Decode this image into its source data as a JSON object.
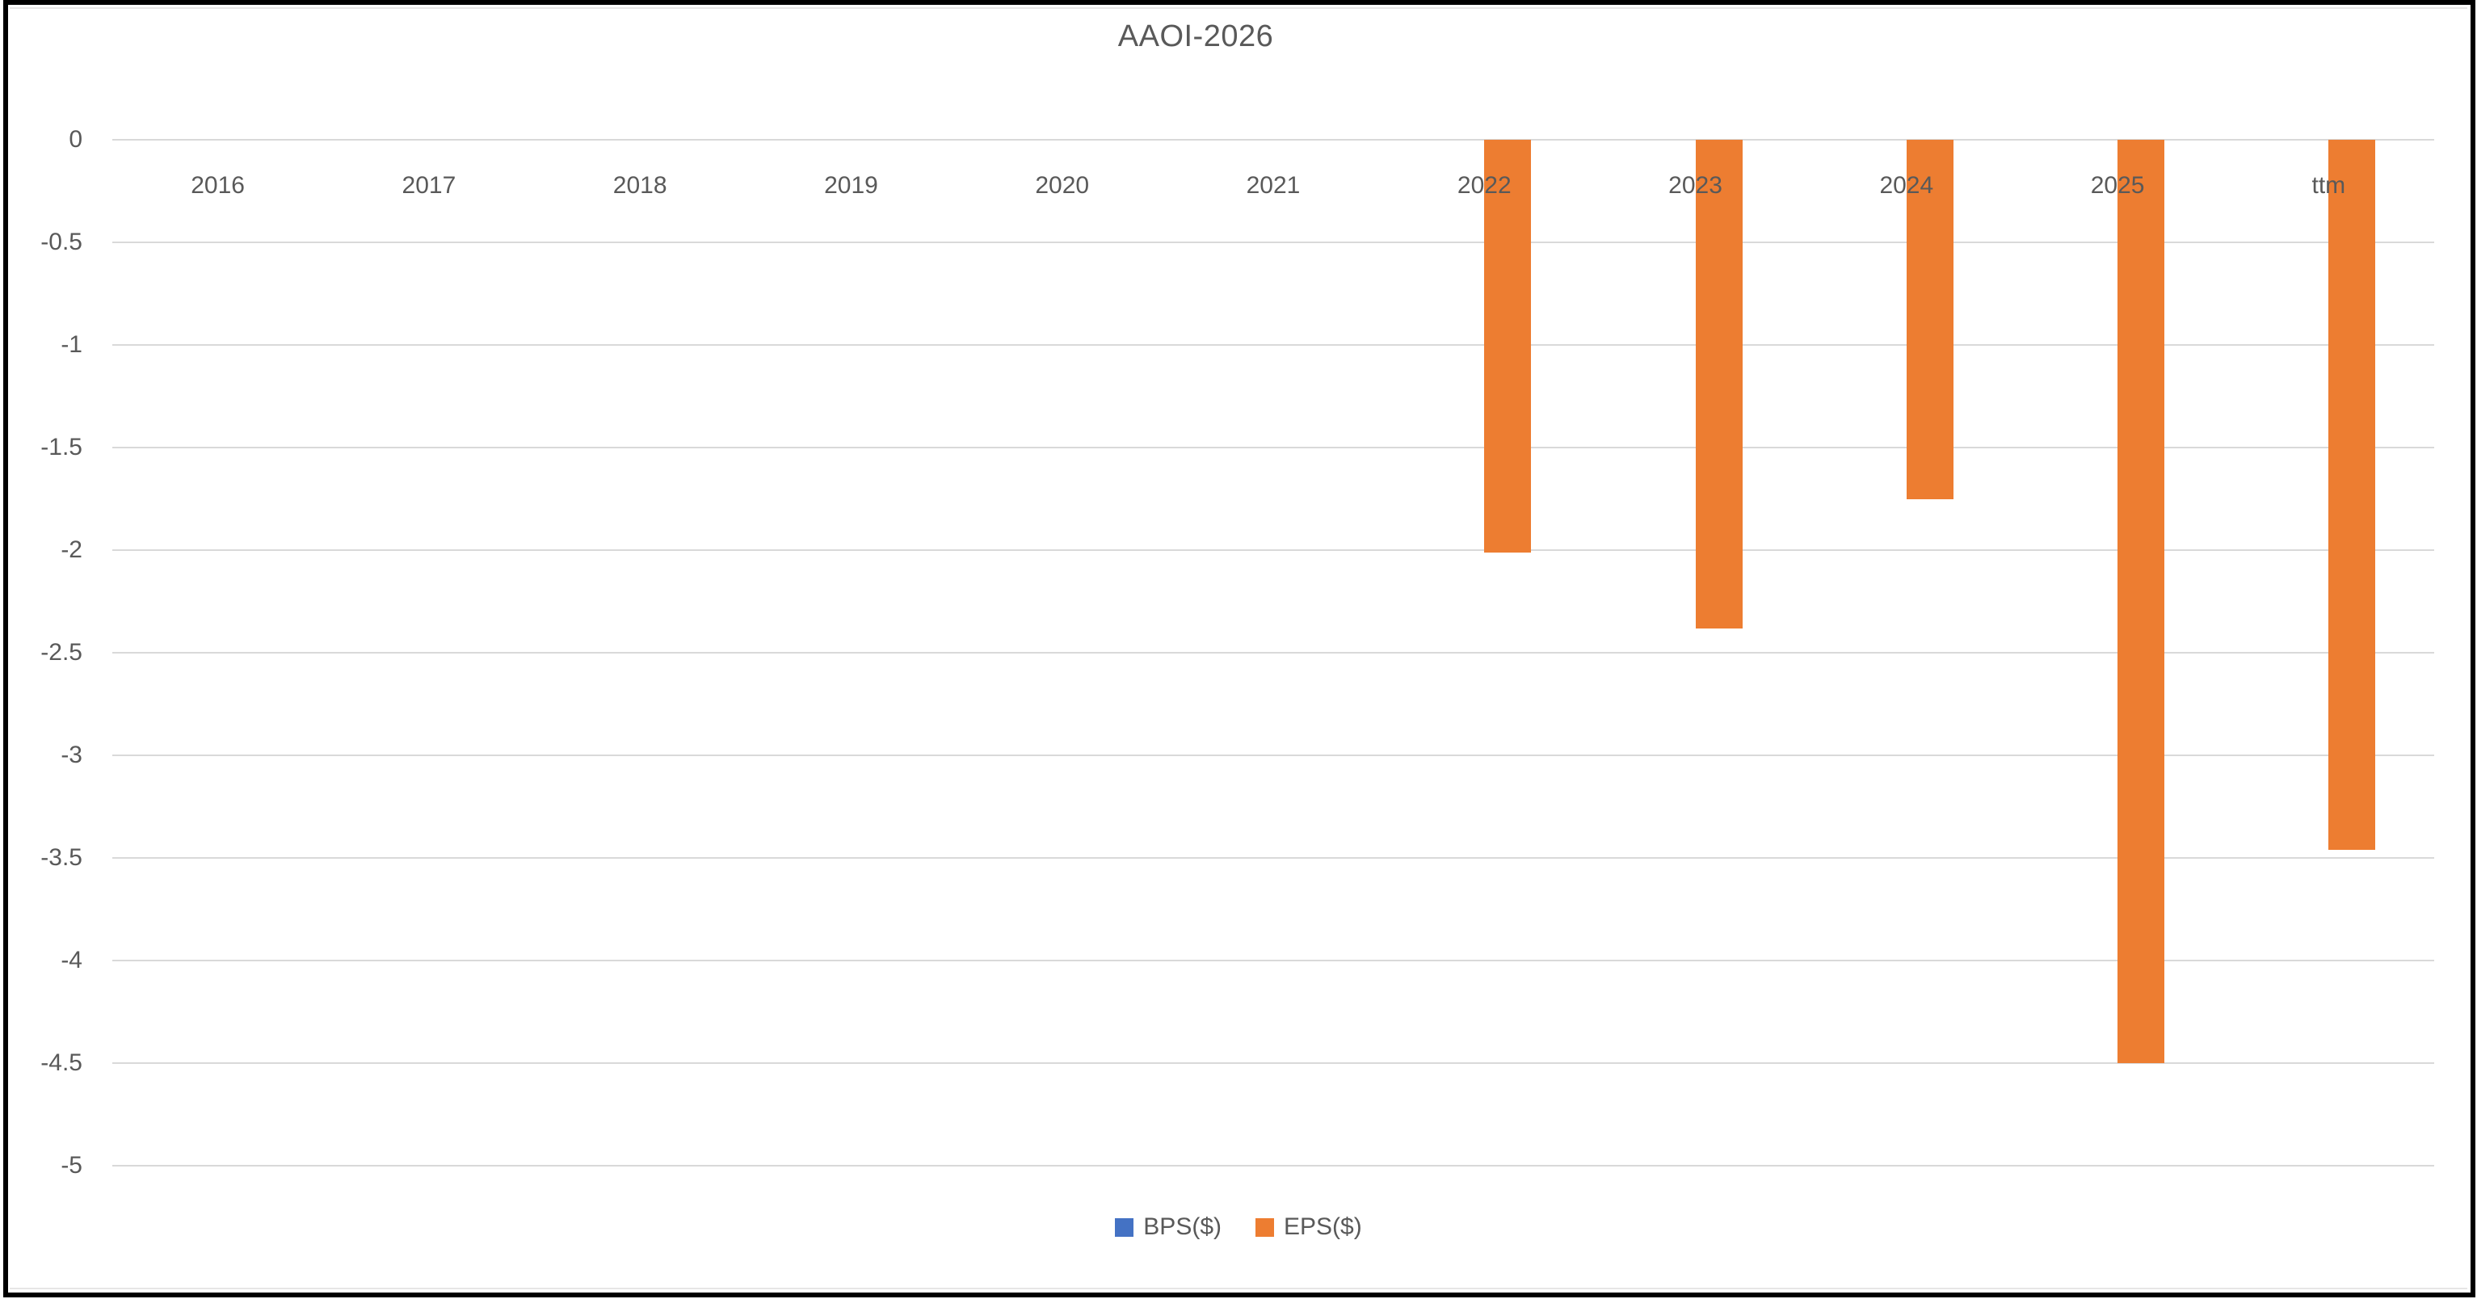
{
  "chart_data": {
    "type": "bar",
    "title": "AAOI-2026",
    "categories": [
      "2016",
      "2017",
      "2018",
      "2019",
      "2020",
      "2021",
      "2022",
      "2023",
      "2024",
      "2025",
      "ttm"
    ],
    "series": [
      {
        "name": "BPS($)",
        "color": "#4472C4",
        "values": [
          null,
          null,
          null,
          null,
          null,
          null,
          null,
          null,
          null,
          null,
          null
        ]
      },
      {
        "name": "EPS($)",
        "color": "#ED7D31",
        "values": [
          null,
          null,
          null,
          null,
          null,
          null,
          -2.01,
          -2.38,
          -1.75,
          -4.5,
          -3.46
        ]
      }
    ],
    "ylim": [
      -5,
      0
    ],
    "ytick_step": 0.5,
    "yticks": [
      "0",
      "-0.5",
      "-1",
      "-1.5",
      "-2",
      "-2.5",
      "-3",
      "-3.5",
      "-4",
      "-4.5",
      "-5"
    ],
    "grid": true,
    "legend_position": "bottom",
    "colors": {
      "text": "#595959",
      "gridline": "#D9D9D9",
      "background": "#FFFFFF",
      "frame_border": "#000000"
    }
  }
}
